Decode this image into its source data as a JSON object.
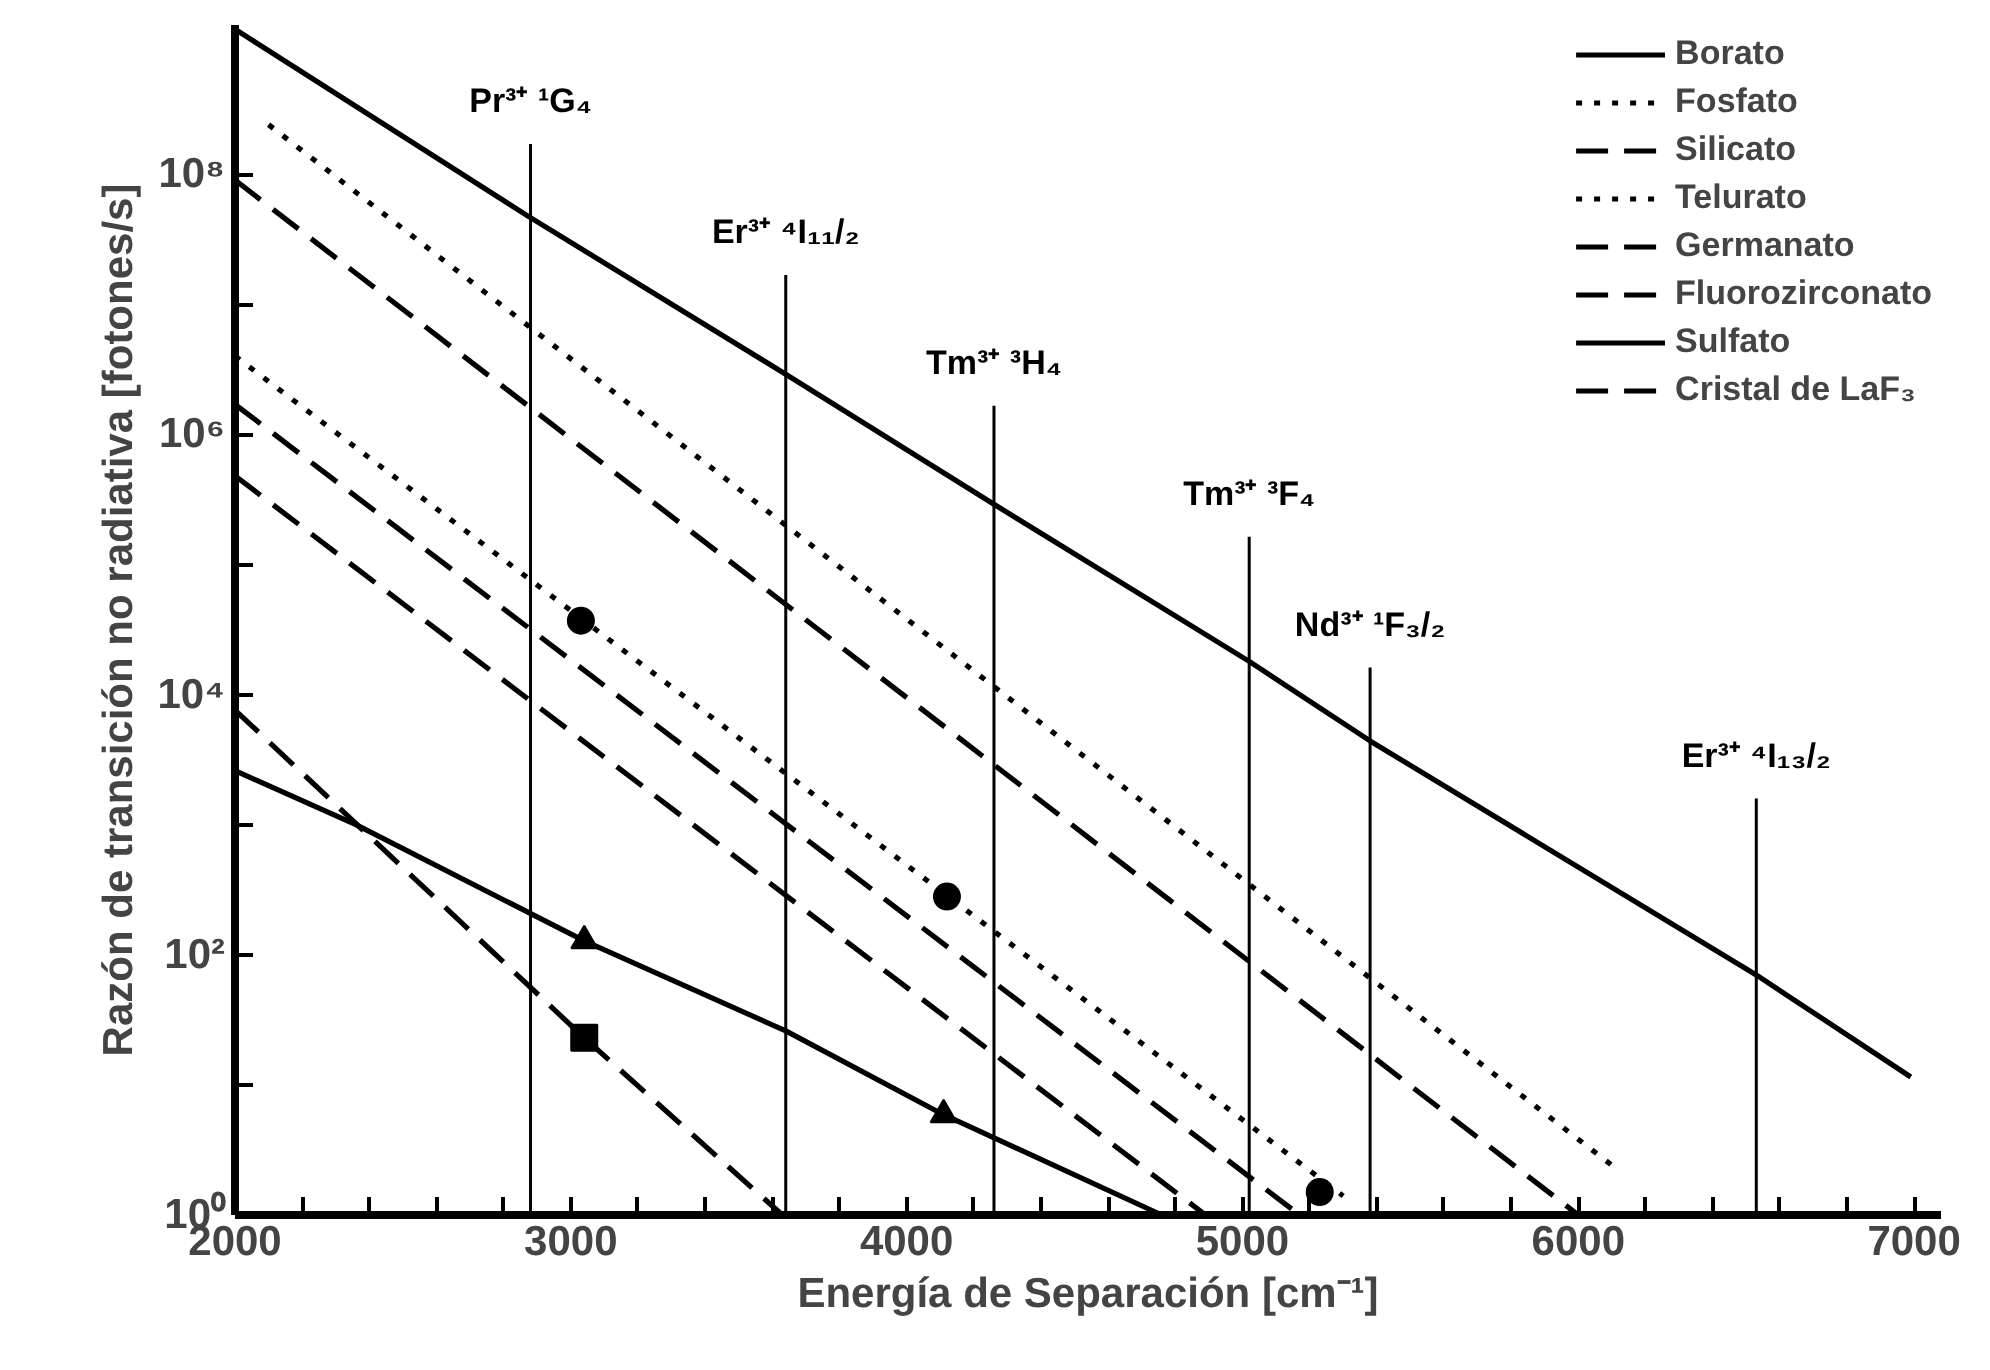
{
  "chart_data": {
    "type": "line",
    "xlabel": "Energía de Separación [cm⁻¹]",
    "ylabel": "Razón de transición no radiativa [fotones/s]",
    "log": "y",
    "legend": "top right",
    "xlim": [
      2000,
      7080
    ],
    "ylim": [
      1,
      1400000000.0
    ],
    "xticks": [
      2000,
      {
        "value": 2200,
        "label": null
      },
      {
        "value": 2400,
        "label": null
      },
      {
        "value": 2600,
        "label": null
      },
      {
        "value": 2800,
        "label": null
      },
      3000,
      {
        "value": 3200,
        "label": null
      },
      {
        "value": 3400,
        "label": null
      },
      {
        "value": 3600,
        "label": null
      },
      {
        "value": 3800,
        "label": null
      },
      4000,
      {
        "value": 4200,
        "label": null
      },
      {
        "value": 4400,
        "label": null
      },
      {
        "value": 4600,
        "label": null
      },
      {
        "value": 4800,
        "label": null
      },
      5000,
      {
        "value": 5200,
        "label": null
      },
      {
        "value": 5400,
        "label": null
      },
      {
        "value": 5600,
        "label": null
      },
      {
        "value": 5800,
        "label": null
      },
      6000,
      {
        "value": 6200,
        "label": null
      },
      {
        "value": 6400,
        "label": null
      },
      {
        "value": 6600,
        "label": null
      },
      {
        "value": 6800,
        "label": null
      },
      7000
    ],
    "yticks": [
      {
        "value": 1,
        "label": "10⁰"
      },
      {
        "value": 10,
        "label": null
      },
      {
        "value": 100,
        "label": "10²"
      },
      {
        "value": 1000,
        "label": null
      },
      {
        "value": 10000,
        "label": "10⁴"
      },
      {
        "value": 100000,
        "label": null
      },
      {
        "value": 1000000,
        "label": "10⁶"
      },
      {
        "value": 10000000,
        "label": null
      },
      {
        "value": 100000000,
        "label": "10⁸"
      }
    ],
    "series": [
      {
        "name": "Borato",
        "color": "#000000",
        "line_style": "solid",
        "x": [
          2000,
          2870,
          3640,
          4260,
          5020,
          5380,
          6530,
          6990
        ],
        "values": [
          1300000000.0,
          48000000.0,
          2900000.0,
          290000.0,
          18000.0,
          4400.0,
          70,
          11.5
        ]
      },
      {
        "name": "Fosfato",
        "color": "#000000",
        "line_style": "dotted",
        "x": [
          2100,
          6110
        ],
        "values": [
          240000000.0,
          2.3
        ]
      },
      {
        "name": "Silicato",
        "color": "#000000",
        "line_style": "dashed",
        "x": [
          2000,
          6000
        ],
        "values": [
          90000000.0,
          1
        ]
      },
      {
        "name": "Telurato",
        "color": "#000000",
        "line_style": "dotted",
        "x": [
          2000,
          5300
        ],
        "values": [
          4000000.0,
          1.4
        ]
      },
      {
        "name": "Germanato",
        "color": "#000000",
        "line_style": "dashed",
        "x": [
          2000,
          5170
        ],
        "values": [
          1700000.0,
          1
        ]
      },
      {
        "name": "Fluorozirconato",
        "color": "#000000",
        "line_style": "dashed",
        "x": [
          2000,
          4890
        ],
        "values": [
          480000.0,
          1
        ]
      },
      {
        "name": "Sulfato",
        "color": "#000000",
        "line_style": "solid",
        "x": [
          2000,
          2360,
          3040,
          3640,
          4110,
          4760
        ],
        "values": [
          2600,
          1000,
          128,
          26,
          5.9,
          1
        ]
      },
      {
        "name": "Cristal de LaF₃",
        "color": "#000000",
        "line_style": "dashed",
        "x": [
          2000,
          3040,
          3630
        ],
        "values": [
          7600,
          23,
          1
        ]
      },
      {
        "type": "scatter",
        "marker": "circle",
        "color": "#000000",
        "x": [
          3030,
          4120,
          5230
        ],
        "values": [
          37000.0,
          280,
          1.5
        ]
      },
      {
        "type": "scatter",
        "marker": "triangle",
        "color": "#000000",
        "x": [
          3040,
          4110
        ],
        "values": [
          128,
          5.9
        ]
      },
      {
        "type": "scatter",
        "marker": "square",
        "color": "#000000",
        "x": [
          3040
        ],
        "values": [
          23
        ]
      }
    ],
    "ref_lines": [
      {
        "axis": "x",
        "value": 2880,
        "label": "Pr³⁺ ¹G₄"
      },
      {
        "axis": "x",
        "value": 3640,
        "label": "Er³⁺ ⁴I₁₁/₂"
      },
      {
        "axis": "x",
        "value": 4260,
        "label": "Tm³⁺ ³H₄"
      },
      {
        "axis": "x",
        "value": 5020,
        "label": "Tm³⁺ ³F₄"
      },
      {
        "axis": "x",
        "value": 5380,
        "label": "Nd³⁺ ¹F₃/₂"
      },
      {
        "axis": "x",
        "value": 6530,
        "label": "Er³⁺ ⁴I₁₃/₂"
      }
    ]
  }
}
